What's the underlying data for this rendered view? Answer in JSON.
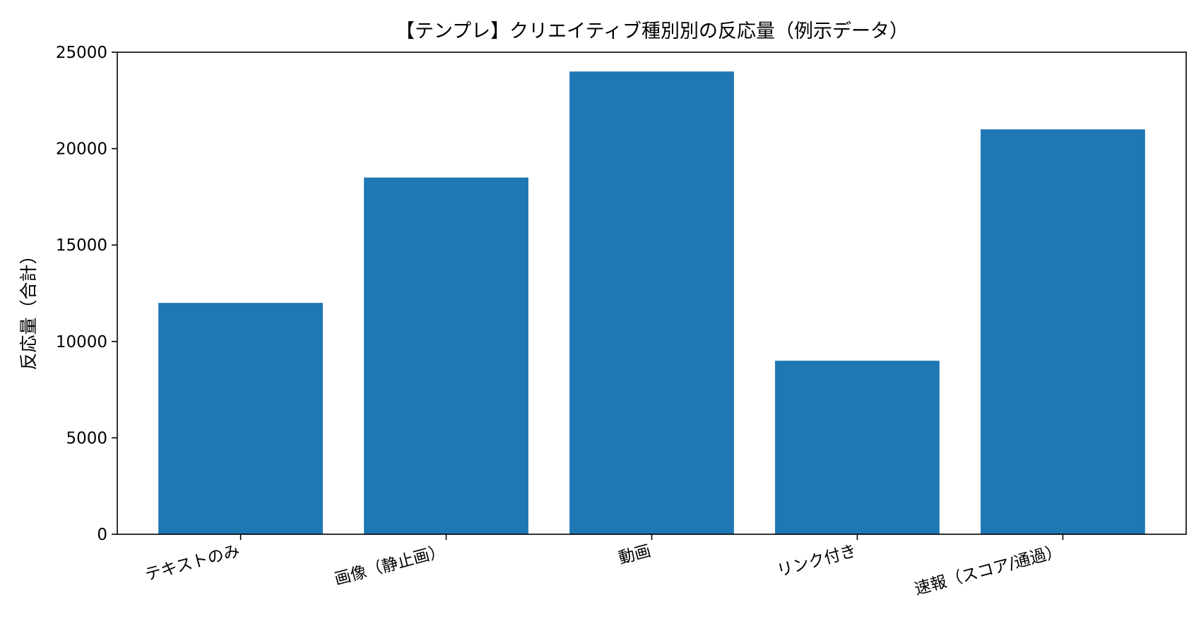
{
  "chart_data": {
    "type": "bar",
    "title": "【テンプレ】クリエイティブ種別別の反応量（例示データ）",
    "xlabel": "",
    "ylabel": "反応量（合計）",
    "categories": [
      "テキストのみ",
      "画像（静止画）",
      "動画",
      "リンク付き",
      "速報（スコア/通過）"
    ],
    "values": [
      12000,
      18500,
      24000,
      9000,
      21000
    ],
    "ylim": [
      0,
      25000
    ],
    "yticks": [
      0,
      5000,
      10000,
      15000,
      20000,
      25000
    ],
    "bar_color": "#1f77b4",
    "grid": false,
    "legend": "none"
  }
}
